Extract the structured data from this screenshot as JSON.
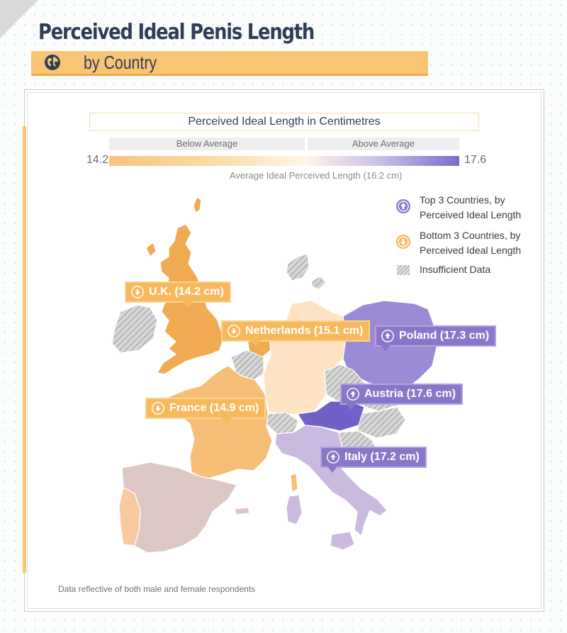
{
  "header": {
    "title": "Perceived Ideal Penis Length",
    "subtitle": "by Country"
  },
  "scale": {
    "title": "Perceived Ideal Length in Centimetres",
    "below_label": "Below Average",
    "above_label": "Above Average",
    "min_label": "14.2",
    "max_label": "17.6",
    "average_label": "Average Ideal Perceived Length (16.2 cm)"
  },
  "legend": {
    "top": "Top 3 Countries, by Perceived Ideal Length",
    "bottom": "Bottom 3 Countries, by Perceived Ideal Length",
    "insufficient": "Insufficient Data"
  },
  "callouts": {
    "uk": "U.K. (14.2 cm)",
    "netherlands": "Netherlands (15.1 cm)",
    "poland": "Poland (17.3 cm)",
    "austria": "Austria (17.6 cm)",
    "france": "France (14.9 cm)",
    "italy": "Italy (17.2 cm)"
  },
  "colors": {
    "low_accent": "#f6b95d",
    "high_accent": "#8a76c8",
    "title_color": "#2f3d55",
    "band_color": "#f8c575"
  },
  "footer": {
    "note": "Data reflective of both male and female respondents"
  }
}
